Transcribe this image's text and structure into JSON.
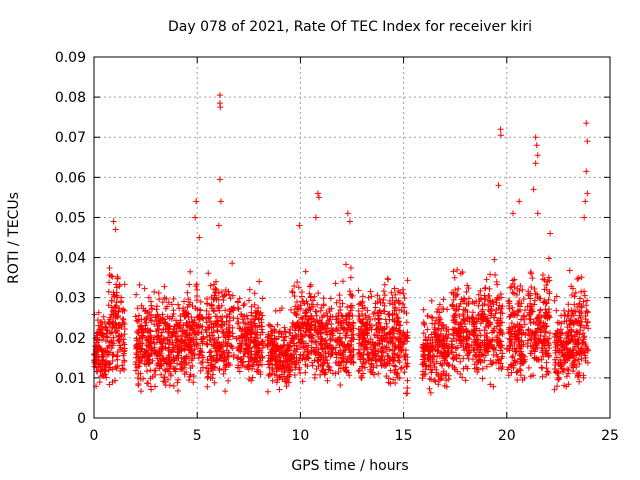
{
  "chart_data": {
    "type": "scatter",
    "title": "Day 078 of 2021, Rate Of TEC Index for receiver kiri",
    "xlabel": "GPS time / hours",
    "ylabel": "ROTI / TECUs",
    "xlim": [
      0,
      25
    ],
    "ylim": [
      0,
      0.09
    ],
    "x_ticks": [
      "0",
      "5",
      "10",
      "15",
      "20",
      "25"
    ],
    "y_ticks": [
      "0",
      "0.01",
      "0.02",
      "0.03",
      "0.04",
      "0.05",
      "0.06",
      "0.07",
      "0.08",
      "0.09"
    ],
    "grid": true,
    "marker": "+",
    "color": "#ff0000",
    "clusters": [
      {
        "x": [
          0.0,
          0.75
        ],
        "y": [
          0.007,
          0.03
        ]
      },
      {
        "x": [
          0.7,
          1.5
        ],
        "y": [
          0.008,
          0.043
        ]
      },
      {
        "x": [
          2.0,
          3.2
        ],
        "y": [
          0.005,
          0.037
        ]
      },
      {
        "x": [
          3.2,
          4.4
        ],
        "y": [
          0.006,
          0.036
        ]
      },
      {
        "x": [
          4.4,
          5.3
        ],
        "y": [
          0.007,
          0.038
        ]
      },
      {
        "x": [
          5.4,
          6.8
        ],
        "y": [
          0.006,
          0.042
        ]
      },
      {
        "x": [
          6.9,
          8.2
        ],
        "y": [
          0.007,
          0.035
        ]
      },
      {
        "x": [
          8.4,
          9.6
        ],
        "y": [
          0.006,
          0.03
        ]
      },
      {
        "x": [
          9.6,
          10.7
        ],
        "y": [
          0.008,
          0.04
        ]
      },
      {
        "x": [
          10.7,
          11.6
        ],
        "y": [
          0.007,
          0.037
        ]
      },
      {
        "x": [
          11.7,
          12.6
        ],
        "y": [
          0.006,
          0.04
        ]
      },
      {
        "x": [
          12.8,
          14.0
        ],
        "y": [
          0.007,
          0.037
        ]
      },
      {
        "x": [
          14.0,
          15.2
        ],
        "y": [
          0.005,
          0.04
        ]
      },
      {
        "x": [
          15.9,
          17.2
        ],
        "y": [
          0.006,
          0.032
        ]
      },
      {
        "x": [
          17.3,
          18.2
        ],
        "y": [
          0.008,
          0.042
        ]
      },
      {
        "x": [
          18.3,
          19.8
        ],
        "y": [
          0.007,
          0.042
        ]
      },
      {
        "x": [
          20.0,
          20.9
        ],
        "y": [
          0.007,
          0.04
        ]
      },
      {
        "x": [
          21.0,
          22.1
        ],
        "y": [
          0.008,
          0.045
        ]
      },
      {
        "x": [
          22.3,
          23.0
        ],
        "y": [
          0.006,
          0.034
        ]
      },
      {
        "x": [
          23.0,
          23.95
        ],
        "y": [
          0.007,
          0.04
        ]
      }
    ],
    "outliers": [
      {
        "x": 6.1,
        "y": 0.0805
      },
      {
        "x": 6.1,
        "y": 0.0785
      },
      {
        "x": 6.12,
        "y": 0.0775
      },
      {
        "x": 6.1,
        "y": 0.0595
      },
      {
        "x": 6.15,
        "y": 0.054
      },
      {
        "x": 6.05,
        "y": 0.048
      },
      {
        "x": 4.9,
        "y": 0.05
      },
      {
        "x": 5.1,
        "y": 0.045
      },
      {
        "x": 4.95,
        "y": 0.054
      },
      {
        "x": 19.7,
        "y": 0.072
      },
      {
        "x": 19.72,
        "y": 0.0705
      },
      {
        "x": 19.6,
        "y": 0.058
      },
      {
        "x": 21.4,
        "y": 0.07
      },
      {
        "x": 21.45,
        "y": 0.068
      },
      {
        "x": 21.5,
        "y": 0.0655
      },
      {
        "x": 21.4,
        "y": 0.0635
      },
      {
        "x": 21.3,
        "y": 0.057
      },
      {
        "x": 21.5,
        "y": 0.051
      },
      {
        "x": 23.85,
        "y": 0.0735
      },
      {
        "x": 23.9,
        "y": 0.069
      },
      {
        "x": 23.85,
        "y": 0.0615
      },
      {
        "x": 23.9,
        "y": 0.056
      },
      {
        "x": 23.8,
        "y": 0.054
      },
      {
        "x": 23.75,
        "y": 0.05
      },
      {
        "x": 10.85,
        "y": 0.056
      },
      {
        "x": 10.9,
        "y": 0.055
      },
      {
        "x": 10.75,
        "y": 0.05
      },
      {
        "x": 12.3,
        "y": 0.051
      },
      {
        "x": 12.4,
        "y": 0.049
      },
      {
        "x": 0.95,
        "y": 0.049
      },
      {
        "x": 1.05,
        "y": 0.047
      },
      {
        "x": 20.6,
        "y": 0.054
      },
      {
        "x": 20.3,
        "y": 0.051
      },
      {
        "x": 22.1,
        "y": 0.046
      },
      {
        "x": 9.95,
        "y": 0.048
      }
    ]
  }
}
